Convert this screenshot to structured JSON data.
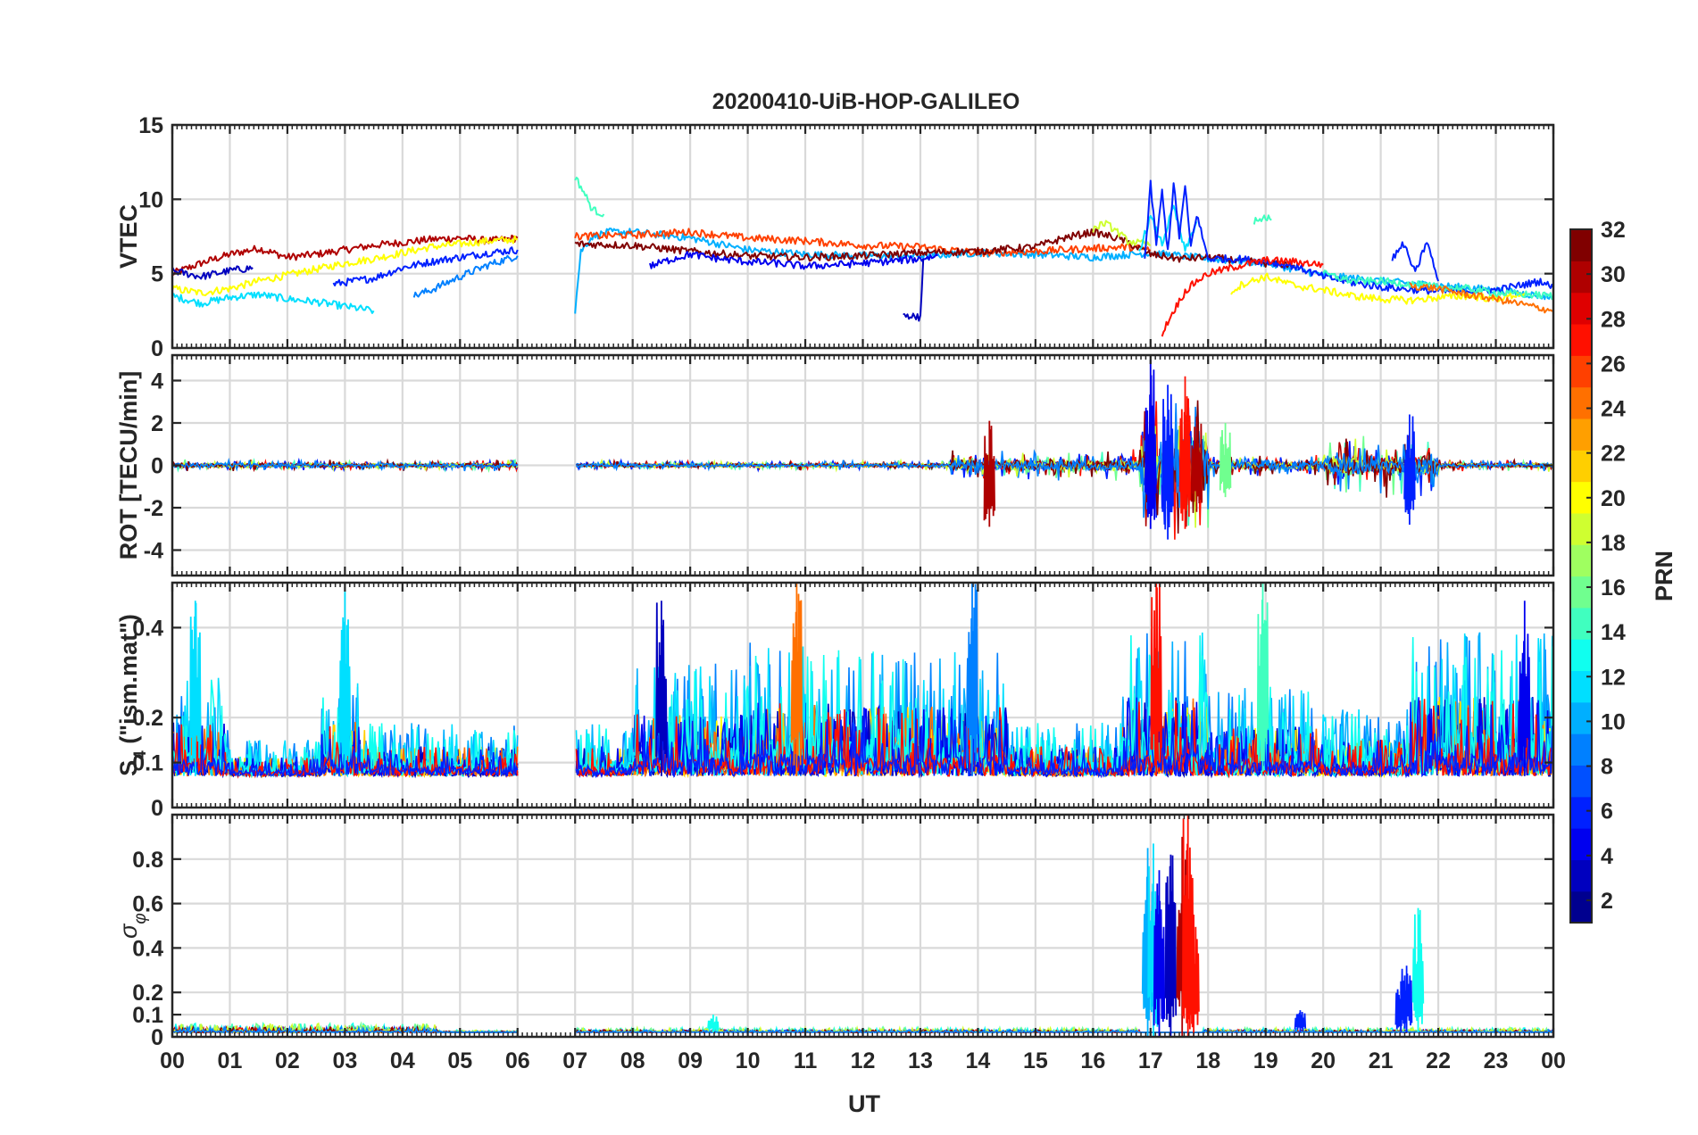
{
  "chart_data": {
    "type": "line",
    "title": "20200410-UiB-HOP-GALILEO",
    "xlabel": "UT",
    "x_tick_labels": [
      "00",
      "01",
      "02",
      "03",
      "04",
      "05",
      "06",
      "07",
      "08",
      "09",
      "10",
      "11",
      "12",
      "13",
      "14",
      "15",
      "16",
      "17",
      "18",
      "19",
      "20",
      "21",
      "22",
      "23",
      "00"
    ],
    "xlim_hours": [
      0,
      24
    ],
    "data_gap_hours": [
      6.0,
      7.0
    ],
    "colorbar": {
      "label": "PRN",
      "range": [
        1,
        32
      ],
      "tick_labels": [
        "2",
        "4",
        "6",
        "8",
        "10",
        "12",
        "14",
        "16",
        "18",
        "20",
        "22",
        "24",
        "26",
        "28",
        "30",
        "32"
      ],
      "colors": [
        "#00008f",
        "#0000bf",
        "#0000ef",
        "#0020ff",
        "#0050ff",
        "#0080ff",
        "#00afff",
        "#00dfff",
        "#10ffef",
        "#40ffbf",
        "#70ff8f",
        "#9fff60",
        "#cfff30",
        "#ffff00",
        "#ffcf00",
        "#ff9f00",
        "#ff7000",
        "#ff4000",
        "#ff1000",
        "#df0000",
        "#af0000",
        "#800000"
      ]
    },
    "panels": [
      {
        "id": "vtec",
        "ylabel": "VTEC",
        "ylim": [
          0,
          15
        ],
        "y_ticks": [
          0,
          5,
          10,
          15
        ],
        "y_tick_labels": [
          "0",
          "5",
          "10",
          "15"
        ],
        "series": [
          {
            "prn": 30,
            "t": [
              0.0,
              0.5,
              1.0,
              1.5,
              2.0,
              2.5,
              3.0,
              3.5,
              4.0,
              4.5,
              5.0,
              5.5,
              6.0
            ],
            "v": [
              5.0,
              5.7,
              6.3,
              6.7,
              6.1,
              6.3,
              6.6,
              6.9,
              7.1,
              7.3,
              7.4,
              7.2,
              7.4
            ]
          },
          {
            "prn": 20,
            "t": [
              0.0,
              0.5,
              1.0,
              1.5,
              2.0,
              2.5,
              3.0,
              3.5,
              4.0,
              4.5,
              5.0,
              5.5,
              6.0
            ],
            "v": [
              4.0,
              3.7,
              4.0,
              4.5,
              4.9,
              5.3,
              5.7,
              6.0,
              6.4,
              6.8,
              7.0,
              7.2,
              7.3
            ]
          },
          {
            "prn": 12,
            "t": [
              0.0,
              0.5,
              1.0,
              1.5,
              2.0,
              2.5,
              3.0,
              3.5
            ],
            "v": [
              3.5,
              3.0,
              3.4,
              3.6,
              3.3,
              3.1,
              2.8,
              2.5
            ]
          },
          {
            "prn": 3,
            "t": [
              0.0,
              0.5,
              1.0,
              1.4
            ],
            "v": [
              5.2,
              4.8,
              5.2,
              5.4
            ]
          },
          {
            "prn": 6,
            "t": [
              2.8,
              3.5,
              4.0,
              4.5,
              5.0,
              5.5,
              6.0
            ],
            "v": [
              4.3,
              4.7,
              5.4,
              5.8,
              6.1,
              6.4,
              6.6
            ]
          },
          {
            "prn": 9,
            "t": [
              4.2,
              4.5,
              5.0,
              5.5,
              6.0
            ],
            "v": [
              3.5,
              3.9,
              4.8,
              5.6,
              6.2
            ]
          },
          {
            "prn": 10,
            "t": [
              7.0,
              7.1,
              7.3,
              7.6,
              8.0,
              8.5,
              9.0,
              9.5,
              10.0,
              11.0,
              12.0,
              13.0,
              14.0,
              15.0,
              16.0,
              17.0,
              18.0,
              19.0,
              20.0,
              21.0,
              22.0,
              23.0,
              24.0
            ],
            "v": [
              2.5,
              6.5,
              7.5,
              7.8,
              7.8,
              7.6,
              7.4,
              7.0,
              6.6,
              6.3,
              6.2,
              6.2,
              6.4,
              6.3,
              6.1,
              6.4,
              6.0,
              5.7,
              4.9,
              4.5,
              4.2,
              3.9,
              3.4
            ]
          },
          {
            "prn": 14,
            "t": [
              7.0,
              7.15,
              7.3,
              7.5
            ],
            "v": [
              11.5,
              10.5,
              9.3,
              9.0
            ]
          },
          {
            "prn": 26,
            "t": [
              7.0,
              8.0,
              9.0,
              10.0,
              11.0,
              12.0,
              13.0,
              14.0,
              15.0,
              16.0,
              16.6,
              17.0
            ],
            "v": [
              7.5,
              7.6,
              7.8,
              7.4,
              7.2,
              6.9,
              6.8,
              6.4,
              6.5,
              6.7,
              6.8,
              6.6
            ]
          },
          {
            "prn": 32,
            "t": [
              7.0,
              8.0,
              9.0,
              10.0,
              11.0,
              12.0,
              13.0,
              14.0,
              15.0,
              15.5,
              16.0,
              16.5,
              17.0,
              17.5,
              18.0,
              18.5,
              19.0,
              19.5
            ],
            "v": [
              7.0,
              6.9,
              6.5,
              6.2,
              6.1,
              6.2,
              6.4,
              6.5,
              6.8,
              7.4,
              7.8,
              7.3,
              6.3,
              6.0,
              6.1,
              5.9,
              5.7,
              5.6
            ]
          },
          {
            "prn": 4,
            "t": [
              8.3,
              8.7,
              9.0,
              9.5,
              10.0,
              10.5,
              11.0,
              12.0,
              13.0,
              13.3
            ],
            "v": [
              5.5,
              6.0,
              6.3,
              6.0,
              5.8,
              5.7,
              5.5,
              5.7,
              6.0,
              6.2
            ]
          },
          {
            "prn": 3,
            "t": [
              12.7,
              13.0,
              13.05
            ],
            "v": [
              2.3,
              2.0,
              6.0
            ]
          },
          {
            "prn": 18,
            "t": [
              16.0,
              16.2,
              16.4,
              16.6,
              17.0
            ],
            "v": [
              8.0,
              8.4,
              7.9,
              7.2,
              6.9
            ]
          },
          {
            "prn": 12,
            "t": [
              16.8,
              17.0,
              17.2,
              17.4,
              17.6,
              17.8
            ],
            "v": [
              6.5,
              8.8,
              7.0,
              9.5,
              6.5,
              8.5
            ]
          },
          {
            "prn": 5,
            "t": [
              16.9,
              17.0,
              17.1,
              17.2,
              17.3,
              17.4,
              17.5,
              17.6,
              17.7,
              17.8,
              18.0,
              18.5,
              19.0,
              19.5,
              20.0,
              20.5,
              21.0,
              22.0,
              23.0,
              23.8,
              24.0
            ],
            "v": [
              6.0,
              11.0,
              7.0,
              10.5,
              6.5,
              11.0,
              7.5,
              10.8,
              6.8,
              9.0,
              6.0,
              6.0,
              5.8,
              5.5,
              4.8,
              4.4,
              4.1,
              3.8,
              3.9,
              4.5,
              4.0
            ]
          },
          {
            "prn": 27,
            "t": [
              17.2,
              17.4,
              17.6,
              17.8,
              18.0,
              18.5,
              19.0,
              19.5,
              20.0
            ],
            "v": [
              1.0,
              2.5,
              3.8,
              4.5,
              5.0,
              5.5,
              5.9,
              5.8,
              5.6
            ]
          },
          {
            "prn": 15,
            "t": [
              18.8,
              19.0,
              19.1
            ],
            "v": [
              8.5,
              8.8,
              8.6
            ]
          },
          {
            "prn": 20,
            "t": [
              18.4,
              18.6,
              19.0,
              19.5,
              20.0,
              20.5,
              21.0,
              21.5,
              22.0,
              22.5,
              23.0,
              23.5
            ],
            "v": [
              3.8,
              4.3,
              4.8,
              4.2,
              3.9,
              3.5,
              3.3,
              3.2,
              3.4,
              3.5,
              3.3,
              3.7
            ]
          },
          {
            "prn": 14,
            "t": [
              20.0,
              20.5,
              21.0,
              21.5,
              22.0,
              22.5,
              23.0,
              23.5,
              24.0
            ],
            "v": [
              5.0,
              4.5,
              4.5,
              4.3,
              4.1,
              4.0,
              3.7,
              3.6,
              3.5
            ]
          },
          {
            "prn": 24,
            "t": [
              21.5,
              22.0,
              22.5,
              23.0,
              23.5,
              24.0
            ],
            "v": [
              4.2,
              4.0,
              3.6,
              3.3,
              2.9,
              2.5
            ]
          },
          {
            "prn": 6,
            "t": [
              21.2,
              21.4,
              21.6,
              21.8,
              22.0
            ],
            "v": [
              6.0,
              7.0,
              5.0,
              7.2,
              4.5
            ]
          }
        ]
      },
      {
        "id": "rot",
        "ylabel": "ROT [TECU/min]",
        "ylim": [
          -5.2,
          5.2
        ],
        "y_ticks": [
          -4,
          -2,
          0,
          2,
          4
        ],
        "y_tick_labels": [
          "-4",
          "-2",
          "0",
          "2",
          "4"
        ],
        "activity": [
          {
            "t0": 0.0,
            "t1": 6.0,
            "amplitude": 0.3
          },
          {
            "t0": 7.0,
            "t1": 13.5,
            "amplitude": 0.25
          },
          {
            "t0": 13.5,
            "t1": 16.8,
            "amplitude": 0.8
          },
          {
            "t0": 16.8,
            "t1": 18.0,
            "amplitude": 4.0
          },
          {
            "t0": 18.0,
            "t1": 20.0,
            "amplitude": 0.6
          },
          {
            "t0": 20.0,
            "t1": 22.0,
            "amplitude": 1.6
          },
          {
            "t0": 22.0,
            "t1": 24.0,
            "amplitude": 0.3
          }
        ],
        "spikes": [
          {
            "t": 14.2,
            "prn": 30,
            "lo": -2.9,
            "hi": 2.1
          },
          {
            "t": 17.0,
            "prn": 4,
            "lo": -3.0,
            "hi": 5.0
          },
          {
            "t": 17.3,
            "prn": 5,
            "lo": -3.5,
            "hi": 3.8
          },
          {
            "t": 17.6,
            "prn": 28,
            "lo": -3.0,
            "hi": 4.2
          },
          {
            "t": 17.8,
            "prn": 30,
            "lo": -2.2,
            "hi": 2.3
          },
          {
            "t": 18.3,
            "prn": 16,
            "lo": -1.5,
            "hi": 2.0
          },
          {
            "t": 21.5,
            "prn": 6,
            "lo": -2.8,
            "hi": 2.4
          }
        ]
      },
      {
        "id": "s4",
        "ylabel": "S_4 (\"ism.mat\")",
        "ylabel_main": "S",
        "ylabel_sub": "4",
        "ylabel_rest": " (\"ism.mat\")",
        "ylim": [
          0,
          0.5
        ],
        "y_ticks": [
          0,
          0.1,
          0.2,
          0.4
        ],
        "y_tick_labels": [
          "0",
          "0.1",
          "0.2",
          "0.4"
        ],
        "baseline": 0.07,
        "activity": [
          {
            "t0": 0.0,
            "t1": 1.0,
            "amplitude": 0.22
          },
          {
            "t0": 1.0,
            "t1": 2.6,
            "amplitude": 0.08
          },
          {
            "t0": 2.6,
            "t1": 3.4,
            "amplitude": 0.22
          },
          {
            "t0": 3.4,
            "t1": 6.0,
            "amplitude": 0.12
          },
          {
            "t0": 7.0,
            "t1": 8.0,
            "amplitude": 0.12
          },
          {
            "t0": 8.0,
            "t1": 10.0,
            "amplitude": 0.25
          },
          {
            "t0": 10.0,
            "t1": 11.5,
            "amplitude": 0.3
          },
          {
            "t0": 11.5,
            "t1": 14.5,
            "amplitude": 0.28
          },
          {
            "t0": 14.5,
            "t1": 16.5,
            "amplitude": 0.12
          },
          {
            "t0": 16.5,
            "t1": 18.0,
            "amplitude": 0.32
          },
          {
            "t0": 18.0,
            "t1": 20.0,
            "amplitude": 0.2
          },
          {
            "t0": 20.0,
            "t1": 21.5,
            "amplitude": 0.15
          },
          {
            "t0": 21.5,
            "t1": 24.0,
            "amplitude": 0.32
          }
        ],
        "spikes": [
          {
            "t": 0.4,
            "prn": 12,
            "lo": 0.07,
            "hi": 0.46
          },
          {
            "t": 3.0,
            "prn": 12,
            "lo": 0.08,
            "hi": 0.48
          },
          {
            "t": 8.5,
            "prn": 3,
            "lo": 0.07,
            "hi": 0.46
          },
          {
            "t": 10.85,
            "prn": 25,
            "lo": 0.07,
            "hi": 0.5
          },
          {
            "t": 13.9,
            "prn": 8,
            "lo": 0.07,
            "hi": 0.5
          },
          {
            "t": 17.1,
            "prn": 28,
            "lo": 0.07,
            "hi": 0.5
          },
          {
            "t": 18.95,
            "prn": 15,
            "lo": 0.08,
            "hi": 0.5
          },
          {
            "t": 23.5,
            "prn": 4,
            "lo": 0.07,
            "hi": 0.46
          }
        ]
      },
      {
        "id": "sigma_phi",
        "ylabel": "σ_φ",
        "ylabel_main": "σ",
        "ylabel_sub": "φ",
        "ylim": [
          0,
          1.0
        ],
        "y_ticks": [
          0,
          0.1,
          0.2,
          0.4,
          0.6,
          0.8
        ],
        "y_tick_labels": [
          "0",
          "0.1",
          "0.2",
          "0.4",
          "0.6",
          "0.8"
        ],
        "baseline": 0.02,
        "activity": [
          {
            "t0": 0.0,
            "t1": 4.6,
            "amplitude": 0.04
          },
          {
            "t0": 4.6,
            "t1": 6.0,
            "amplitude": 0.01
          },
          {
            "t0": 7.0,
            "t1": 16.8,
            "amplitude": 0.02
          },
          {
            "t0": 16.8,
            "t1": 17.9,
            "amplitude": 0.0
          },
          {
            "t0": 17.9,
            "t1": 24.0,
            "amplitude": 0.02
          }
        ],
        "spikes": [
          {
            "t": 9.4,
            "prn": 13,
            "lo": 0.02,
            "hi": 0.1
          },
          {
            "t": 16.95,
            "prn": 10,
            "lo": 0.0,
            "hi": 0.85
          },
          {
            "t": 17.05,
            "prn": 12,
            "lo": 0.0,
            "hi": 0.87
          },
          {
            "t": 17.15,
            "prn": 4,
            "lo": 0.0,
            "hi": 0.75
          },
          {
            "t": 17.35,
            "prn": 2,
            "lo": 0.0,
            "hi": 0.82
          },
          {
            "t": 17.55,
            "prn": 30,
            "lo": 0.0,
            "hi": 0.9
          },
          {
            "t": 17.65,
            "prn": 28,
            "lo": 0.0,
            "hi": 1.0
          },
          {
            "t": 17.75,
            "prn": 27,
            "lo": 0.0,
            "hi": 0.55
          },
          {
            "t": 19.6,
            "prn": 5,
            "lo": 0.02,
            "hi": 0.12
          },
          {
            "t": 21.35,
            "prn": 5,
            "lo": 0.02,
            "hi": 0.25
          },
          {
            "t": 21.45,
            "prn": 6,
            "lo": 0.02,
            "hi": 0.32
          },
          {
            "t": 21.65,
            "prn": 13,
            "lo": 0.02,
            "hi": 0.58
          }
        ]
      }
    ]
  }
}
